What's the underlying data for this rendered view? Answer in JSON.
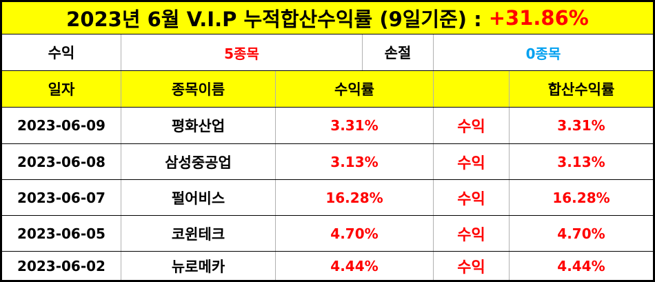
{
  "title": {
    "label": "2023년 6월 V.I.P 누적합산수익률 (9일기준) :",
    "value": "+31.86%"
  },
  "summary": {
    "profit_label": "수익",
    "profit_count": "5종목",
    "loss_label": "손절",
    "loss_count": "0종목"
  },
  "headers": [
    "일자",
    "종목이름",
    "수익률",
    "",
    "합산수익률"
  ],
  "rows": [
    {
      "date": "2023-06-09",
      "name": "평화산업",
      "rate": "3.31%",
      "status": "수익",
      "total": "3.31%"
    },
    {
      "date": "2023-06-08",
      "name": "삼성중공업",
      "rate": "3.13%",
      "status": "수익",
      "total": "3.13%"
    },
    {
      "date": "2023-06-07",
      "name": "펄어비스",
      "rate": "16.28%",
      "status": "수익",
      "total": "16.28%"
    },
    {
      "date": "2023-06-05",
      "name": "코윈테크",
      "rate": "4.70%",
      "status": "수익",
      "total": "4.70%"
    },
    {
      "date": "2023-06-02",
      "name": "뉴로메카",
      "rate": "4.44%",
      "status": "수익",
      "total": "4.44%"
    }
  ],
  "colors": {
    "highlight": "#ffff00",
    "profit": "#ff0000",
    "loss": "#00a0f0"
  }
}
